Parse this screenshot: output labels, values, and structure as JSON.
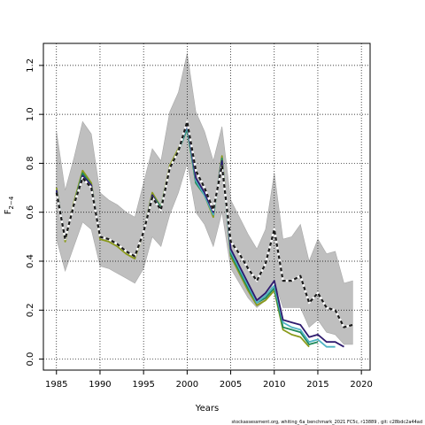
{
  "chart_data": {
    "type": "line",
    "title": "",
    "xlabel": "Years",
    "ylabel_main": "F",
    "ylabel_sub": "2−4",
    "xlim": [
      1983.5,
      2021
    ],
    "ylim": [
      -0.045,
      1.29
    ],
    "x_ticks": [
      1985,
      1990,
      1995,
      2000,
      2005,
      2010,
      2015,
      2020
    ],
    "y_ticks": [
      0.0,
      0.2,
      0.4,
      0.6,
      0.8,
      1.0,
      1.2
    ],
    "y_tick_labels": [
      "0.0",
      "0.2",
      "0.4",
      "0.6",
      "0.8",
      "1.0",
      "1.2"
    ],
    "grid": true,
    "band": {
      "x": [
        1985,
        1986,
        1987,
        1988,
        1989,
        1990,
        1991,
        1992,
        1993,
        1994,
        1995,
        1996,
        1997,
        1998,
        1999,
        2000,
        2001,
        2002,
        2003,
        2004,
        2005,
        2006,
        2007,
        2008,
        2009,
        2010,
        2011,
        2012,
        2013,
        2014,
        2015,
        2016,
        2017,
        2018,
        2019
      ],
      "upper": [
        0.93,
        0.69,
        0.82,
        0.97,
        0.92,
        0.68,
        0.65,
        0.63,
        0.6,
        0.58,
        0.72,
        0.86,
        0.81,
        1.01,
        1.09,
        1.25,
        1.01,
        0.93,
        0.81,
        0.95,
        0.65,
        0.58,
        0.51,
        0.45,
        0.53,
        0.76,
        0.49,
        0.5,
        0.55,
        0.4,
        0.49,
        0.43,
        0.44,
        0.31,
        0.32
      ],
      "lower": [
        0.49,
        0.36,
        0.46,
        0.56,
        0.53,
        0.38,
        0.37,
        0.35,
        0.33,
        0.31,
        0.37,
        0.5,
        0.46,
        0.59,
        0.68,
        0.8,
        0.6,
        0.55,
        0.46,
        0.6,
        0.37,
        0.31,
        0.25,
        0.21,
        0.24,
        0.32,
        0.21,
        0.21,
        0.21,
        0.13,
        0.16,
        0.11,
        0.1,
        0.06,
        0.06
      ]
    },
    "series": [
      {
        "x": [
          1985,
          1986,
          1987,
          1988,
          1989,
          1990,
          1991,
          1992,
          1993,
          1994,
          1995,
          1996,
          1997,
          1998,
          1999,
          2000,
          2001,
          2002,
          2003,
          2004,
          2005,
          2006,
          2007,
          2008,
          2009,
          2010,
          2011,
          2012,
          2013,
          2014,
          2015,
          2016,
          2017,
          2018,
          2019
        ],
        "values": [
          0.68,
          0.49,
          0.63,
          0.74,
          0.7,
          0.5,
          0.49,
          0.47,
          0.44,
          0.42,
          0.52,
          0.66,
          0.61,
          0.78,
          0.85,
          0.97,
          0.77,
          0.7,
          0.61,
          0.79,
          0.48,
          0.43,
          0.37,
          0.32,
          0.39,
          0.53,
          0.32,
          0.32,
          0.34,
          0.23,
          0.27,
          0.21,
          0.2,
          0.13,
          0.14
        ],
        "color": "#1a1a1a",
        "style": "dashed"
      },
      {
        "x": [
          1985,
          1986,
          1987,
          1988,
          1989,
          1990,
          1991,
          1992,
          1993,
          1994,
          1995,
          1996,
          1997,
          1998,
          1999,
          2000,
          2001,
          2002,
          2003,
          2004,
          2005,
          2006,
          2007,
          2008,
          2009,
          2010,
          2011,
          2012,
          2013,
          2014,
          2015,
          2016,
          2017,
          2018
        ],
        "values": [
          0.69,
          0.49,
          0.63,
          0.75,
          0.71,
          0.5,
          0.49,
          0.47,
          0.44,
          0.42,
          0.52,
          0.67,
          0.61,
          0.78,
          0.85,
          0.96,
          0.74,
          0.68,
          0.6,
          0.81,
          0.45,
          0.38,
          0.31,
          0.24,
          0.27,
          0.32,
          0.16,
          0.15,
          0.14,
          0.09,
          0.1,
          0.07,
          0.07,
          0.05
        ],
        "color": "#2e1a6e",
        "style": "solid"
      },
      {
        "x": [
          1985,
          1986,
          1987,
          1988,
          1989,
          1990,
          1991,
          1992,
          1993,
          1994,
          1995,
          1996,
          1997,
          1998,
          1999,
          2000,
          2001,
          2002,
          2003,
          2004,
          2005,
          2006,
          2007,
          2008,
          2009,
          2010,
          2011,
          2012,
          2013,
          2014,
          2015,
          2016,
          2017
        ],
        "values": [
          0.69,
          0.49,
          0.63,
          0.75,
          0.71,
          0.5,
          0.49,
          0.47,
          0.44,
          0.42,
          0.52,
          0.67,
          0.61,
          0.78,
          0.85,
          0.95,
          0.73,
          0.67,
          0.59,
          0.81,
          0.44,
          0.37,
          0.3,
          0.23,
          0.26,
          0.3,
          0.15,
          0.13,
          0.12,
          0.07,
          0.08,
          0.05,
          0.05
        ],
        "color": "#4fb3c4",
        "style": "solid"
      },
      {
        "x": [
          1985,
          1986,
          1987,
          1988,
          1989,
          1990,
          1991,
          1992,
          1993,
          1994,
          1995,
          1996,
          1997,
          1998,
          1999,
          2000,
          2001,
          2002,
          2003,
          2004,
          2005,
          2006,
          2007,
          2008,
          2009,
          2010,
          2011,
          2012,
          2013,
          2014,
          2015
        ],
        "values": [
          0.69,
          0.49,
          0.63,
          0.76,
          0.71,
          0.5,
          0.49,
          0.47,
          0.44,
          0.42,
          0.52,
          0.67,
          0.62,
          0.78,
          0.85,
          0.94,
          0.72,
          0.67,
          0.59,
          0.82,
          0.43,
          0.36,
          0.29,
          0.23,
          0.25,
          0.29,
          0.13,
          0.12,
          0.11,
          0.06,
          0.07
        ],
        "color": "#1f8a5a",
        "style": "solid"
      },
      {
        "x": [
          1985,
          1986,
          1987,
          1988,
          1989,
          1990,
          1991,
          1992,
          1993,
          1994,
          1995,
          1996,
          1997,
          1998,
          1999,
          2000,
          2001,
          2002,
          2003,
          2004,
          2005,
          2006,
          2007,
          2008,
          2009,
          2010,
          2011,
          2012,
          2013,
          2014
        ],
        "values": [
          0.7,
          0.48,
          0.64,
          0.77,
          0.72,
          0.49,
          0.48,
          0.46,
          0.43,
          0.41,
          0.52,
          0.68,
          0.62,
          0.79,
          0.86,
          0.94,
          0.72,
          0.67,
          0.58,
          0.83,
          0.42,
          0.35,
          0.28,
          0.22,
          0.24,
          0.28,
          0.12,
          0.1,
          0.09,
          0.05
        ],
        "color": "#8a9a1a",
        "style": "solid"
      }
    ]
  },
  "footer": "stockassessment.org, whiting_6a_benchmark_2021 FC5c, r13889 , git: c28bdc2a44ad"
}
